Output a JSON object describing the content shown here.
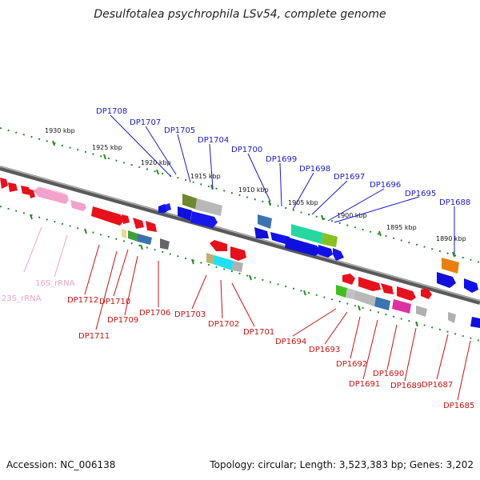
{
  "title": "Desulfotalea psychrophila LSv54, complete genome",
  "footer": {
    "accession": "Accession: NC_006138",
    "topology": "Topology: circular; Length: 3,523,383 bp; Genes: 3,202"
  },
  "kbp_ticks": [
    "1930 kbp",
    "1925 kbp",
    "1920 kbp",
    "1915 kbp",
    "1910 kbp",
    "1905 kbp",
    "1900 kbp",
    "1895 kbp",
    "1890 kbp"
  ],
  "genes_top": [
    "DP1708",
    "DP1707",
    "DP1705",
    "DP1704",
    "DP1700",
    "DP1699",
    "DP1698",
    "DP1697",
    "DP1696",
    "DP1695",
    "DP1688"
  ],
  "genes_bottom": [
    "DP1712",
    "DP1711",
    "DP1710",
    "DP1709",
    "DP1706",
    "DP1703",
    "DP1702",
    "DP1701",
    "DP1694",
    "DP1693",
    "DP1692",
    "DP1691",
    "DP1690",
    "DP1689",
    "DP1687",
    "DP1685"
  ],
  "rrna": [
    "23S_rRNA",
    "16S_rRNA"
  ],
  "colors": {
    "top_label": "#1a1acc",
    "bottom_label": "#cc1111",
    "rrna_label": "#f0a0c8",
    "scale_dots": "#2a8a2a",
    "backbone": "#7a7a7a"
  }
}
